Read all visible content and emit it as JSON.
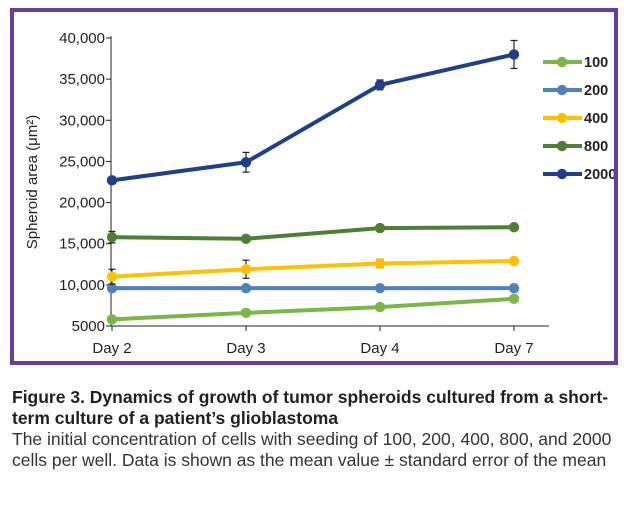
{
  "chart_data": {
    "type": "line",
    "ylabel": "Spheroid area (μm²)",
    "xlabel": "",
    "categories": [
      "Day 2",
      "Day 3",
      "Day 4",
      "Day 7"
    ],
    "ylim": [
      5000,
      40000
    ],
    "yticks": [
      5000,
      10000,
      15000,
      20000,
      25000,
      30000,
      35000,
      40000
    ],
    "ytick_labels": [
      "5000",
      "10,000",
      "15,000",
      "20,000",
      "25,000",
      "30,000",
      "35,000",
      "40,000"
    ],
    "grid": false,
    "legend_position": "right",
    "error_bars": true,
    "series": [
      {
        "name": "100",
        "color": "#7ab648",
        "values": [
          5800,
          6600,
          7300,
          8300
        ],
        "errors": [
          150,
          200,
          150,
          250
        ]
      },
      {
        "name": "200",
        "color": "#4f81bd",
        "values": [
          9600,
          9600,
          9600,
          9600
        ],
        "errors": [
          100,
          100,
          100,
          100
        ]
      },
      {
        "name": "400",
        "color": "#ffc000",
        "values": [
          11000,
          11900,
          12600,
          12900
        ],
        "errors": [
          900,
          1100,
          500,
          200
        ]
      },
      {
        "name": "800",
        "color": "#4f7f35",
        "values": [
          15800,
          15600,
          16900,
          17000
        ],
        "errors": [
          700,
          300,
          300,
          300
        ]
      },
      {
        "name": "2000",
        "color": "#1f3f87",
        "values": [
          22700,
          24900,
          34300,
          38000
        ],
        "errors": [
          300,
          1200,
          600,
          1700
        ]
      }
    ]
  },
  "caption": {
    "title": "Figure 3. Dynamics of growth of tumor spheroids cultured from a short-term culture of a patient’s glioblastoma",
    "body": "The initial concentration of cells with seeding of 100, 200, 400, 800, and 2000 cells per well. Data is shown as the mean value ± standard error of the mean"
  }
}
